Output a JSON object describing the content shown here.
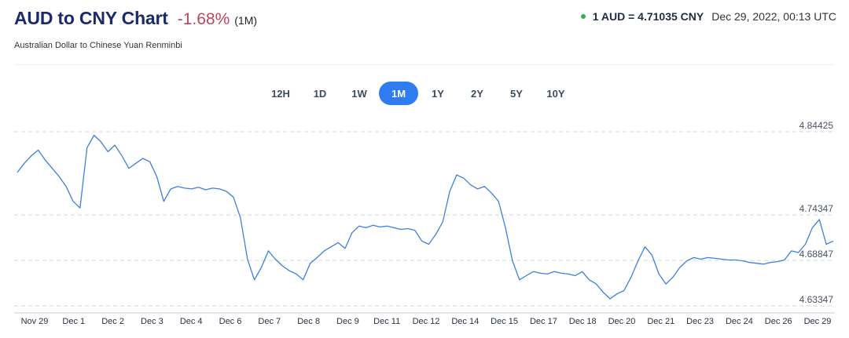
{
  "header": {
    "title": "AUD to CNY Chart",
    "change": "-1.68%",
    "period": "(1M)",
    "subtitle": "Australian Dollar to Chinese Yuan Renminbi",
    "rate": "1 AUD = 4.71035 CNY",
    "timestamp": "Dec 29, 2022, 00:13 UTC",
    "status_color": "#2eb34a"
  },
  "tabs": [
    {
      "label": "12H",
      "active": false
    },
    {
      "label": "1D",
      "active": false
    },
    {
      "label": "1W",
      "active": false
    },
    {
      "label": "1M",
      "active": true
    },
    {
      "label": "1Y",
      "active": false
    },
    {
      "label": "2Y",
      "active": false
    },
    {
      "label": "5Y",
      "active": false
    },
    {
      "label": "10Y",
      "active": false
    }
  ],
  "chart_data": {
    "type": "line",
    "series_color": "#3d7fe0",
    "yticks": [
      "4.84425",
      "4.74347",
      "4.68847",
      "4.63347"
    ],
    "ylim": [
      4.63347,
      4.84425
    ],
    "xticks": [
      "Nov 29",
      "Dec 1",
      "Dec 2",
      "Dec 3",
      "Dec 4",
      "Dec 6",
      "Dec 7",
      "Dec 8",
      "Dec 9",
      "Dec 11",
      "Dec 12",
      "Dec 14",
      "Dec 15",
      "Dec 17",
      "Dec 18",
      "Dec 20",
      "Dec 21",
      "Dec 23",
      "Dec 24",
      "Dec 26",
      "Dec 29"
    ],
    "grid": true,
    "values": [
      4.795,
      4.806,
      4.815,
      4.822,
      4.81,
      4.8,
      4.79,
      4.778,
      4.76,
      4.752,
      4.825,
      4.84,
      4.832,
      4.82,
      4.828,
      4.815,
      4.8,
      4.806,
      4.812,
      4.808,
      4.79,
      4.76,
      4.775,
      4.778,
      4.776,
      4.775,
      4.777,
      4.774,
      4.776,
      4.775,
      4.772,
      4.765,
      4.74,
      4.69,
      4.665,
      4.68,
      4.7,
      4.69,
      4.682,
      4.676,
      4.672,
      4.665,
      4.685,
      4.692,
      4.7,
      4.705,
      4.71,
      4.703,
      4.722,
      4.73,
      4.728,
      4.731,
      4.729,
      4.73,
      4.728,
      4.726,
      4.727,
      4.725,
      4.712,
      4.708,
      4.72,
      4.735,
      4.772,
      4.792,
      4.788,
      4.78,
      4.775,
      4.778,
      4.77,
      4.76,
      4.728,
      4.688,
      4.665,
      4.67,
      4.675,
      4.673,
      4.672,
      4.675,
      4.673,
      4.672,
      4.67,
      4.675,
      4.665,
      4.66,
      4.65,
      4.642,
      4.648,
      4.652,
      4.668,
      4.688,
      4.705,
      4.695,
      4.672,
      4.66,
      4.668,
      4.68,
      4.688,
      4.692,
      4.69,
      4.692,
      4.691,
      4.69,
      4.689,
      4.689,
      4.688,
      4.686,
      4.685,
      4.684,
      4.686,
      4.687,
      4.689,
      4.7,
      4.698,
      4.708,
      4.728,
      4.738,
      4.708,
      4.712
    ]
  }
}
